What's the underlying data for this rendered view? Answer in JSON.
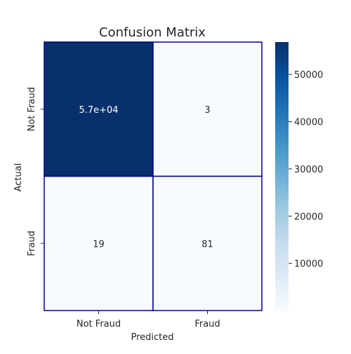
{
  "chart_data": {
    "type": "heatmap",
    "title": "Confusion Matrix",
    "xlabel": "Predicted",
    "ylabel": "Actual",
    "x_categories": [
      "Not Fraud",
      "Fraud"
    ],
    "y_categories": [
      "Not Fraud",
      "Fraud"
    ],
    "values": [
      [
        56860,
        3
      ],
      [
        19,
        81
      ]
    ],
    "annotations": [
      [
        "5.7e+04",
        "3"
      ],
      [
        "19",
        "81"
      ]
    ],
    "colormap": "Blues",
    "colorbar": {
      "range": [
        0,
        56860
      ],
      "ticks": [
        10000,
        20000,
        30000,
        40000,
        50000
      ],
      "tick_labels": [
        "10000",
        "20000",
        "30000",
        "40000",
        "50000"
      ]
    },
    "cell_border_color": "#00008b",
    "colors": {
      "low": "#f7fbff",
      "high": "#08306b"
    },
    "grid": false
  }
}
